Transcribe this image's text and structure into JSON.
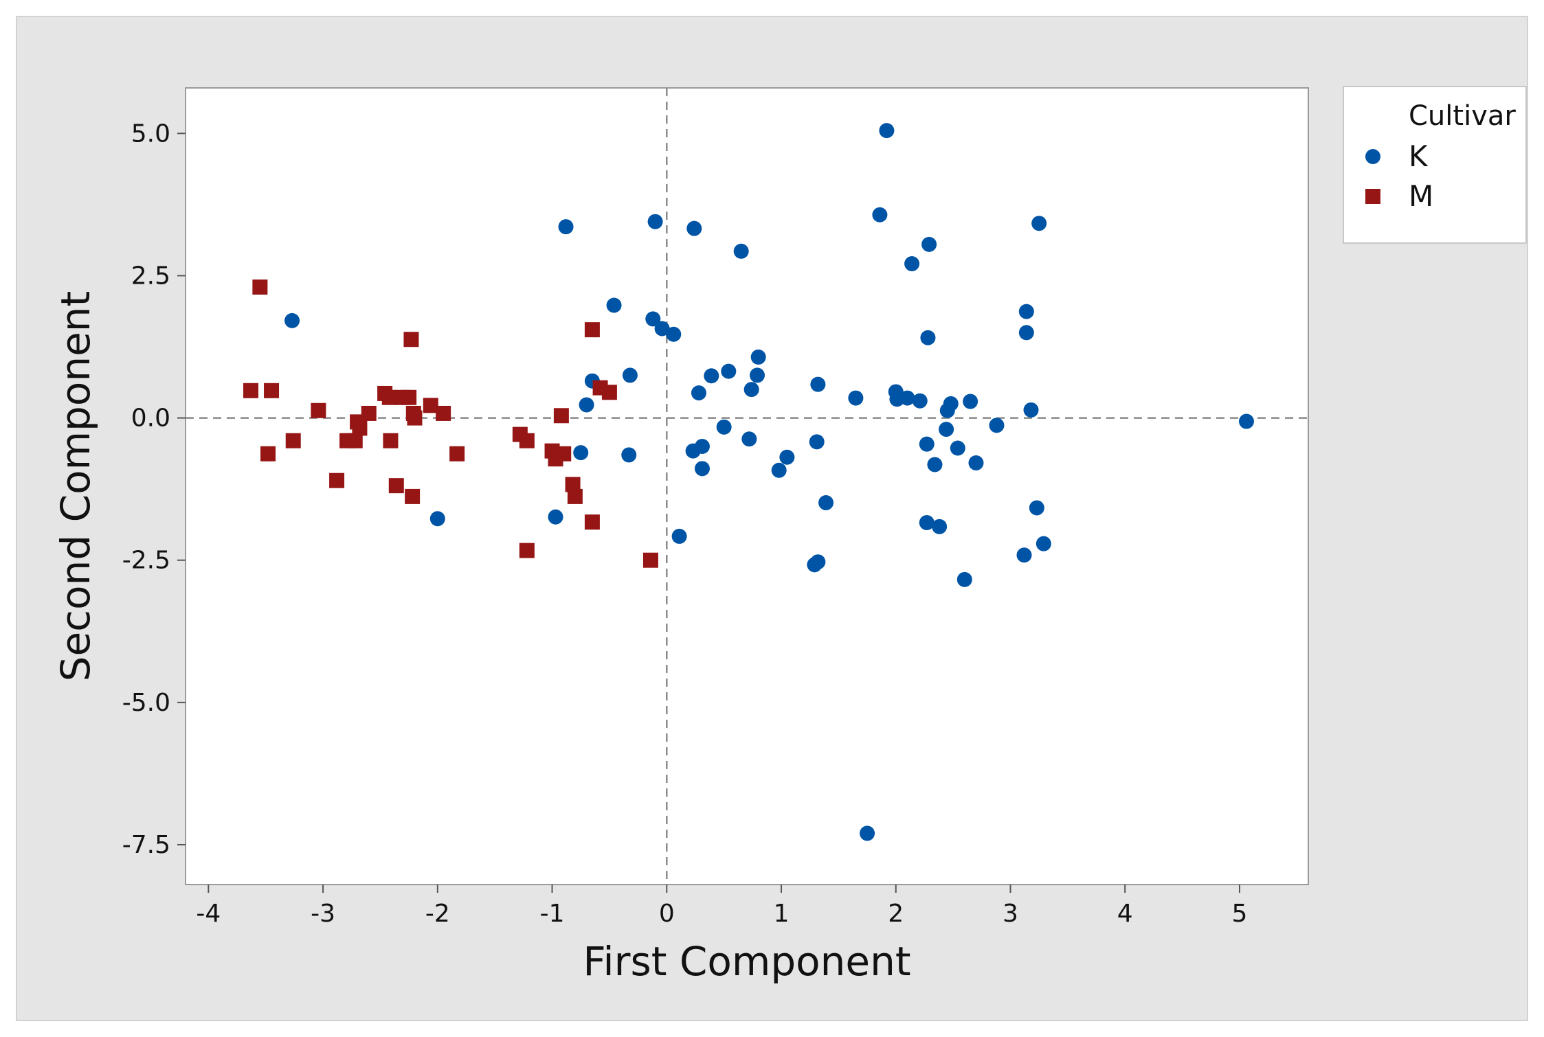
{
  "chart_data": {
    "type": "scatter",
    "title": "",
    "xlabel": "First Component",
    "ylabel": "Second Component",
    "xlim": [
      -4.2,
      5.6
    ],
    "ylim": [
      -8.2,
      5.8
    ],
    "x_ticks": [
      -4,
      -3,
      -2,
      -1,
      0,
      1,
      2,
      3,
      4,
      5
    ],
    "x_tick_labels": [
      "-4",
      "-3",
      "-2",
      "-1",
      "0",
      "1",
      "2",
      "3",
      "4",
      "5"
    ],
    "y_ticks": [
      5.0,
      2.5,
      0.0,
      -2.5,
      -5.0,
      -7.5
    ],
    "y_tick_labels": [
      "5.0",
      "2.5",
      "0.0",
      "-2.5",
      "-5.0",
      "-7.5"
    ],
    "grid": false,
    "reference_lines": {
      "x": 0,
      "y": 0,
      "style": "dashed"
    },
    "legend": {
      "title": "Cultivar",
      "position": "top-right, outside plot"
    },
    "series": [
      {
        "name": "K",
        "marker": "circle",
        "color": "#0054a6",
        "points": [
          [
            1.92,
            5.05
          ],
          [
            1.86,
            3.57
          ],
          [
            3.25,
            3.42
          ],
          [
            -0.1,
            3.45
          ],
          [
            0.24,
            3.33
          ],
          [
            -0.88,
            3.36
          ],
          [
            2.29,
            3.05
          ],
          [
            0.65,
            2.93
          ],
          [
            2.14,
            2.71
          ],
          [
            -3.27,
            1.71
          ],
          [
            -0.46,
            1.98
          ],
          [
            3.14,
            1.87
          ],
          [
            -0.12,
            1.74
          ],
          [
            -0.04,
            1.57
          ],
          [
            0.06,
            1.47
          ],
          [
            3.14,
            1.5
          ],
          [
            2.28,
            1.41
          ],
          [
            0.8,
            1.07
          ],
          [
            0.54,
            0.82
          ],
          [
            0.39,
            0.74
          ],
          [
            0.79,
            0.75
          ],
          [
            -0.32,
            0.75
          ],
          [
            -0.65,
            0.65
          ],
          [
            0.74,
            0.5
          ],
          [
            1.32,
            0.59
          ],
          [
            0.28,
            0.44
          ],
          [
            2.0,
            0.46
          ],
          [
            2.01,
            0.33
          ],
          [
            2.1,
            0.35
          ],
          [
            1.65,
            0.35
          ],
          [
            2.21,
            0.3
          ],
          [
            2.48,
            0.25
          ],
          [
            2.65,
            0.29
          ],
          [
            -0.7,
            0.23
          ],
          [
            2.45,
            0.13
          ],
          [
            3.18,
            0.14
          ],
          [
            2.88,
            -0.13
          ],
          [
            0.5,
            -0.16
          ],
          [
            2.44,
            -0.2
          ],
          [
            0.72,
            -0.37
          ],
          [
            1.31,
            -0.42
          ],
          [
            2.27,
            -0.46
          ],
          [
            2.54,
            -0.53
          ],
          [
            0.31,
            -0.5
          ],
          [
            0.23,
            -0.58
          ],
          [
            -0.75,
            -0.61
          ],
          [
            -0.33,
            -0.65
          ],
          [
            1.05,
            -0.69
          ],
          [
            2.34,
            -0.82
          ],
          [
            2.7,
            -0.79
          ],
          [
            0.31,
            -0.89
          ],
          [
            0.98,
            -0.92
          ],
          [
            1.39,
            -1.49
          ],
          [
            3.23,
            -1.58
          ],
          [
            -0.97,
            -1.74
          ],
          [
            -2.0,
            -1.77
          ],
          [
            2.27,
            -1.84
          ],
          [
            2.38,
            -1.91
          ],
          [
            0.11,
            -2.08
          ],
          [
            3.29,
            -2.21
          ],
          [
            3.12,
            -2.41
          ],
          [
            1.32,
            -2.53
          ],
          [
            1.29,
            -2.58
          ],
          [
            2.6,
            -2.84
          ],
          [
            1.75,
            -7.3
          ],
          [
            5.06,
            -0.06
          ]
        ]
      },
      {
        "name": "M",
        "marker": "square",
        "color": "#961616",
        "points": [
          [
            -3.55,
            2.3
          ],
          [
            -2.23,
            1.38
          ],
          [
            -0.65,
            1.55
          ],
          [
            -3.63,
            0.48
          ],
          [
            -3.45,
            0.48
          ],
          [
            -0.58,
            0.53
          ],
          [
            -0.5,
            0.45
          ],
          [
            -2.46,
            0.43
          ],
          [
            -2.42,
            0.36
          ],
          [
            -2.31,
            0.36
          ],
          [
            -2.25,
            0.36
          ],
          [
            -2.06,
            0.22
          ],
          [
            -3.04,
            0.13
          ],
          [
            -2.6,
            0.08
          ],
          [
            -2.21,
            0.08
          ],
          [
            -1.95,
            0.08
          ],
          [
            -0.92,
            0.04
          ],
          [
            -2.2,
            0.0
          ],
          [
            -2.7,
            -0.07
          ],
          [
            -2.68,
            -0.18
          ],
          [
            -1.28,
            -0.29
          ],
          [
            -3.26,
            -0.4
          ],
          [
            -2.79,
            -0.4
          ],
          [
            -2.72,
            -0.4
          ],
          [
            -2.41,
            -0.4
          ],
          [
            -1.22,
            -0.4
          ],
          [
            -1.0,
            -0.58
          ],
          [
            -0.9,
            -0.63
          ],
          [
            -3.48,
            -0.63
          ],
          [
            -1.83,
            -0.63
          ],
          [
            -0.97,
            -0.72
          ],
          [
            -2.88,
            -1.1
          ],
          [
            -2.36,
            -1.19
          ],
          [
            -0.82,
            -1.17
          ],
          [
            -2.22,
            -1.38
          ],
          [
            -0.8,
            -1.38
          ],
          [
            -0.65,
            -1.83
          ],
          [
            -1.22,
            -2.33
          ],
          [
            -0.14,
            -2.5
          ]
        ]
      }
    ]
  }
}
